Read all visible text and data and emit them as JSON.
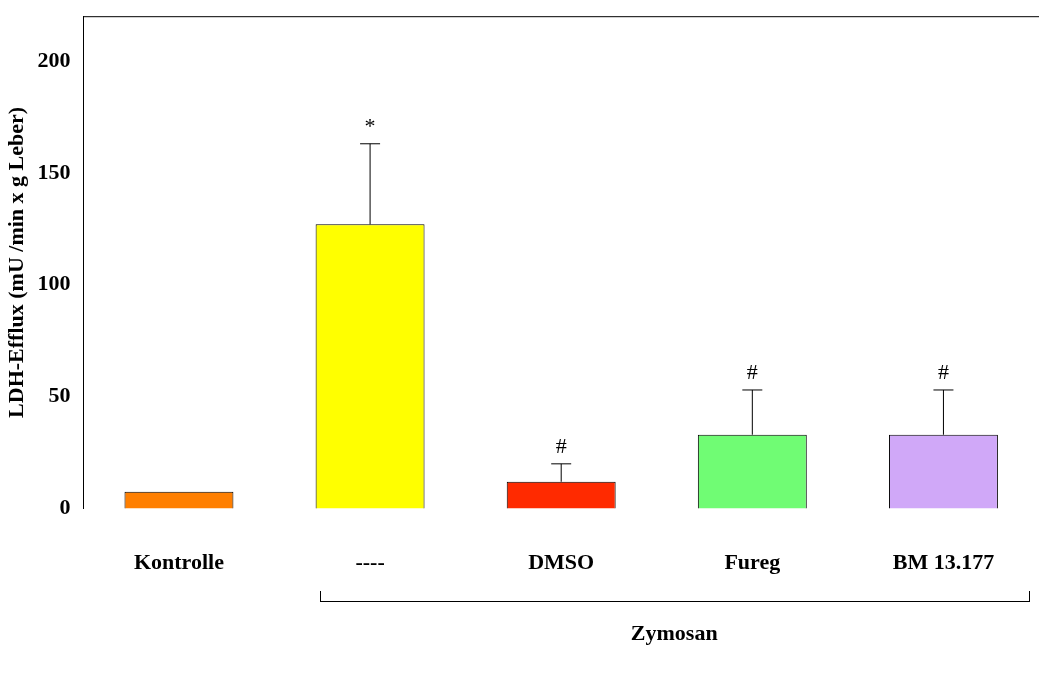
{
  "chart_data": {
    "type": "bar",
    "ylabel": "LDH-Efflux (mU /min x g Leber)",
    "categories": [
      "Kontrolle",
      "----",
      "DMSO",
      "Fureg",
      "BM 13.177"
    ],
    "values": [
      7.5,
      127,
      12,
      33,
      33
    ],
    "colors": [
      "#ff7f00",
      "#ffff00",
      "#ff2a00",
      "#70fc74",
      "#d0a8f8"
    ],
    "errors": [
      null,
      [
        127,
        163
      ],
      [
        12,
        20
      ],
      [
        33,
        53
      ],
      [
        33,
        53
      ]
    ],
    "ylim": [
      0,
      220
    ],
    "yticks": [
      0,
      50,
      100,
      150,
      200
    ],
    "grid": false,
    "legend": false,
    "annotations": [
      {
        "text": "*",
        "x": "----",
        "y": 163
      },
      {
        "text": "#",
        "x": "DMSO",
        "y": 20
      },
      {
        "text": "#",
        "x": "Fureg",
        "y": 53
      },
      {
        "text": "#",
        "x": "BM 13.177",
        "y": 53
      },
      "Zymosan"
    ]
  }
}
